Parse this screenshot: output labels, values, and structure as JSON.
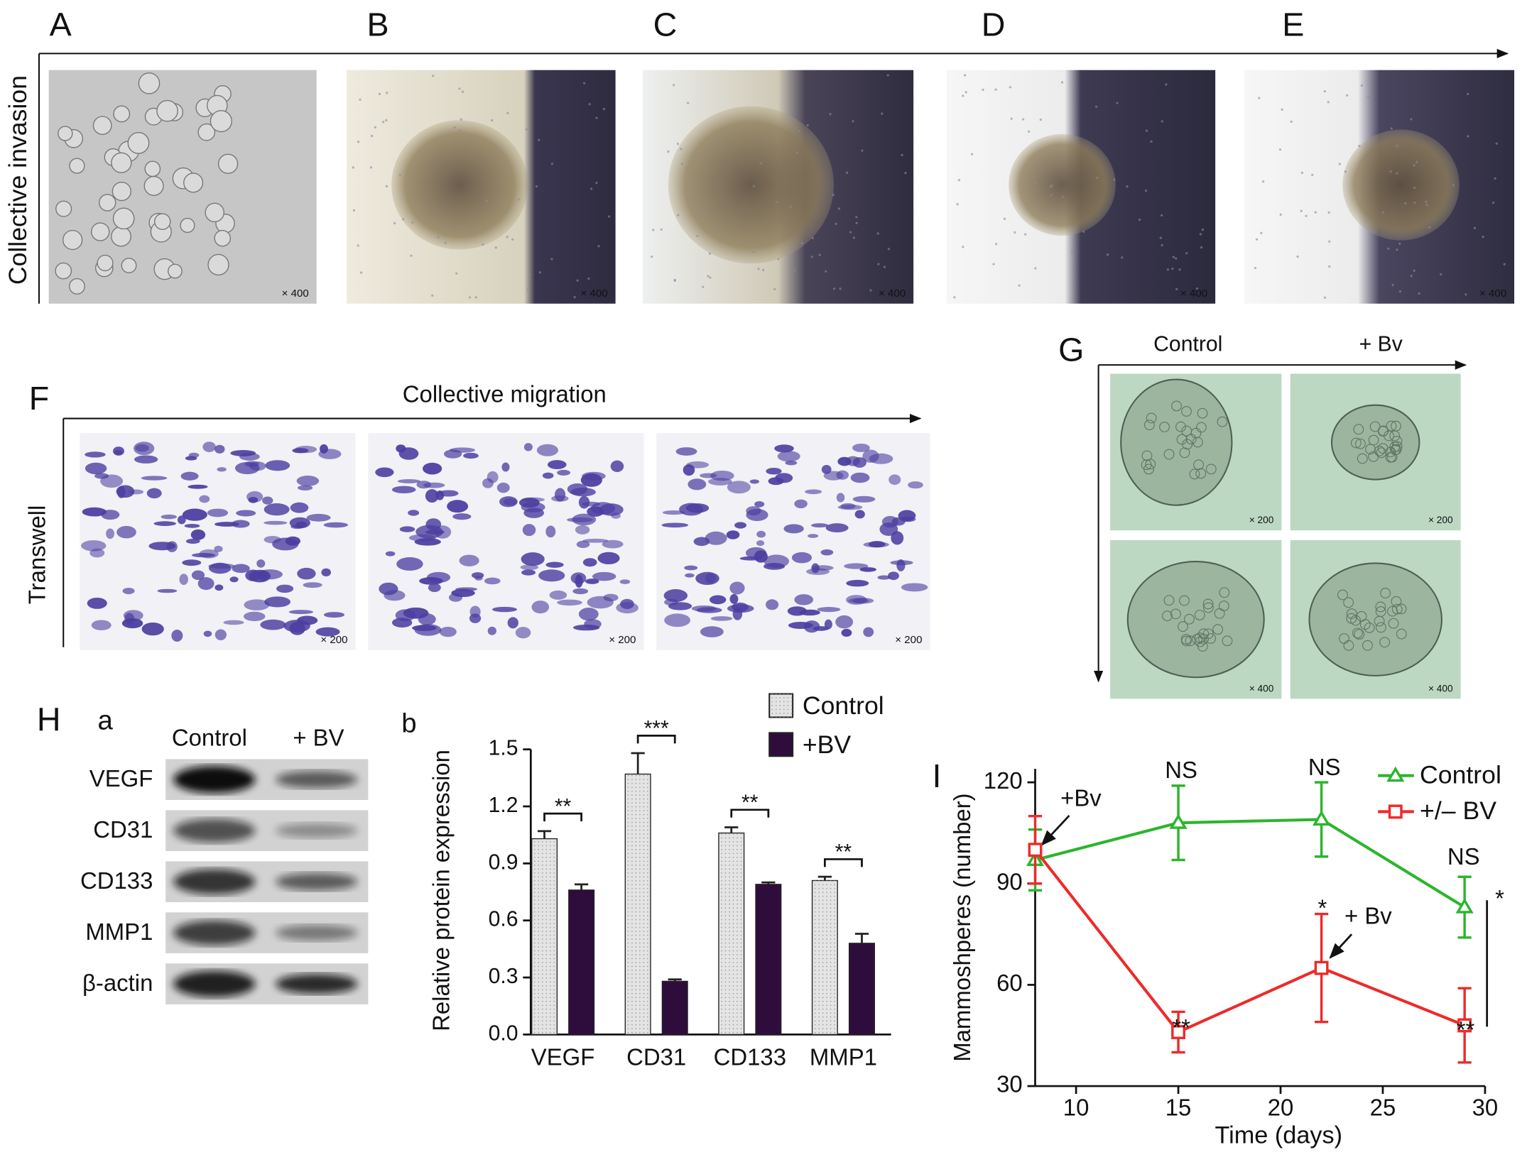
{
  "panel_labels": [
    "A",
    "B",
    "C",
    "D",
    "E",
    "F",
    "G",
    "H",
    "I"
  ],
  "row1": {
    "side_label": "Collective invasion",
    "magnifications": [
      "× 400",
      "× 400",
      "× 400",
      "× 400",
      "× 400"
    ]
  },
  "panel_F": {
    "title": "Collective migration",
    "side_label": "Transwell",
    "magnifications": [
      "× 200",
      "× 200",
      "× 200"
    ]
  },
  "panel_G": {
    "columns": [
      "Control",
      "+ Bv"
    ],
    "magnifications": [
      "× 200",
      "× 200",
      "× 400",
      "× 400"
    ]
  },
  "panel_H": {
    "sublabels": [
      "a",
      "b"
    ],
    "blot_columns": [
      "Control",
      "+ BV"
    ],
    "blot_rows": [
      "VEGF",
      "CD31",
      "CD133",
      "MMP1",
      "β-actin"
    ]
  },
  "chart_data": [
    {
      "type": "bar",
      "ylabel": "Relative protein expression",
      "categories": [
        "VEGF",
        "CD31",
        "CD133",
        "MMP1"
      ],
      "series": [
        {
          "name": "Control",
          "color": "#e4e4e4",
          "values": [
            1.03,
            1.37,
            1.06,
            0.81
          ],
          "errors": [
            0.04,
            0.11,
            0.03,
            0.02
          ]
        },
        {
          "name": "+BV",
          "color": "#2e0d3d",
          "values": [
            0.76,
            0.28,
            0.79,
            0.48
          ],
          "errors": [
            0.03,
            0.01,
            0.01,
            0.05
          ]
        }
      ],
      "significance": [
        "**",
        "***",
        "**",
        "**"
      ],
      "ylim": [
        0,
        1.5
      ],
      "yticks": [
        {
          "value": 0,
          "label": "0.0"
        },
        0.3,
        0.6,
        0.9,
        1.2,
        1.5
      ]
    },
    {
      "type": "line",
      "xlabel": "Time (days)",
      "ylabel": "Mammoshperes (number)",
      "x": [
        8,
        15,
        22,
        29
      ],
      "series": [
        {
          "name": "Control",
          "color": "#2cb52c",
          "marker": "triangle",
          "values": [
            97,
            108,
            109,
            83
          ],
          "errors": [
            9,
            11,
            11,
            9
          ]
        },
        {
          "name": "+/– BV",
          "color": "#ee2a2a",
          "marker": "square",
          "values": [
            100,
            46,
            65,
            48
          ],
          "errors": [
            10,
            6,
            16,
            11
          ]
        }
      ],
      "xlim": [
        8,
        30
      ],
      "xticks": [
        10,
        15,
        20,
        25,
        30
      ],
      "ylim": [
        30,
        124
      ],
      "yticks": [
        30,
        60,
        90,
        120
      ],
      "annotations": [
        "+Bv",
        "NS",
        "NS",
        "NS",
        "**",
        "*",
        "+ Bv",
        "**",
        "*"
      ]
    }
  ]
}
